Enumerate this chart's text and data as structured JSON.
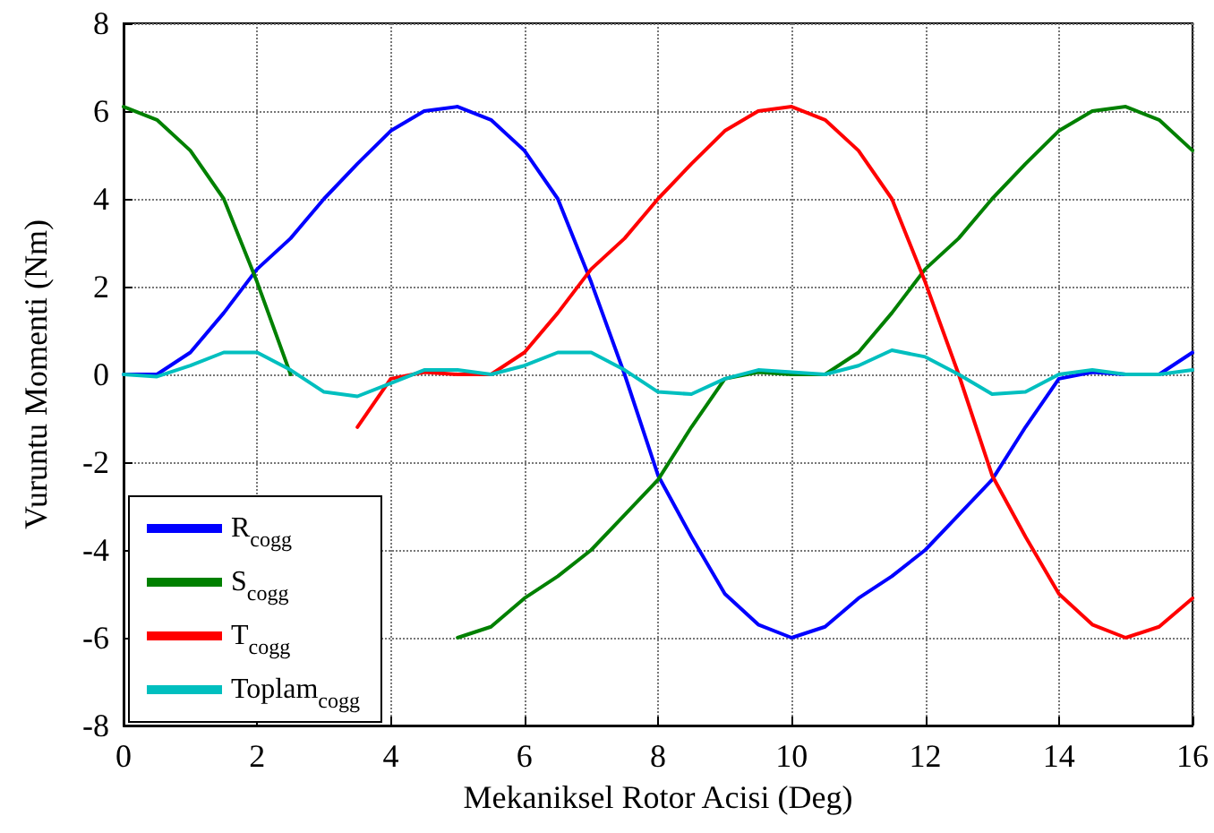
{
  "chart_data": {
    "type": "line",
    "xlabel": "Mekaniksel Rotor Acisi (Deg)",
    "ylabel": "Vuruntu Momenti (Nm)",
    "x": [
      0,
      0.5,
      1,
      1.5,
      2,
      2.5,
      3,
      3.5,
      4,
      4.5,
      5,
      5.5,
      6,
      6.5,
      7,
      7.5,
      8,
      8.5,
      9,
      9.5,
      10,
      10.5,
      11,
      11.5,
      12,
      12.5,
      13,
      13.5,
      14,
      14.5,
      15,
      15.5,
      16
    ],
    "series": [
      {
        "name": "R$_{cogg}$",
        "color": "#0000ff",
        "values": [
          0,
          0,
          0.5,
          1.4,
          2.4,
          3.1,
          4.0,
          4.8,
          5.55,
          6.0,
          6.1,
          5.8,
          5.1,
          4.0,
          2.1,
          0,
          -2.3,
          -3.7,
          -5.0,
          -5.7,
          -6.0,
          -5.75,
          -5.1,
          -4.6,
          -4.0,
          -3.2,
          -2.4,
          -1.2,
          -0.1,
          0.05,
          0,
          0,
          0.5
        ]
      },
      {
        "name": "S$_{cogg}$",
        "color": "#008000",
        "values": [
          6.1,
          5.8,
          5.1,
          4.0,
          2.1,
          0,
          null,
          null,
          null,
          null,
          -6.0,
          -5.75,
          -5.1,
          -4.6,
          -4.0,
          -3.2,
          -2.4,
          -1.2,
          -0.1,
          0.05,
          0,
          0,
          0.5,
          1.4,
          2.4,
          3.1,
          4.0,
          4.8,
          5.55,
          6.0,
          6.1,
          5.8,
          5.1
        ]
      },
      {
        "name": "T$_{cogg}$",
        "color": "#ff0000",
        "values": [
          null,
          null,
          null,
          null,
          null,
          null,
          null,
          -1.2,
          -0.1,
          0.05,
          0,
          0,
          0.5,
          1.4,
          2.4,
          3.1,
          4.0,
          4.8,
          5.55,
          6.0,
          6.1,
          5.8,
          5.1,
          4.0,
          2.1,
          0,
          -2.3,
          -3.7,
          -5.0,
          -5.7,
          -6.0,
          -5.75,
          -5.1
        ]
      },
      {
        "name": "Toplam$_{cogg}$",
        "color": "#00bfbf",
        "values": [
          0,
          -0.05,
          0.2,
          0.5,
          0.5,
          0.1,
          -0.4,
          -0.5,
          -0.2,
          0.1,
          0.1,
          0,
          0.2,
          0.5,
          0.5,
          0.1,
          -0.4,
          -0.45,
          -0.1,
          0.1,
          0.05,
          0,
          0.2,
          0.55,
          0.4,
          0,
          -0.45,
          -0.4,
          0,
          0.1,
          0,
          0,
          0.1
        ]
      }
    ],
    "xlim": [
      0,
      16
    ],
    "xticks": [
      0,
      2,
      4,
      6,
      8,
      10,
      12,
      14,
      16
    ],
    "ylim": [
      -8,
      8
    ],
    "yticks": [
      -8,
      -6,
      -4,
      -2,
      0,
      2,
      4,
      6,
      8
    ],
    "grid": true,
    "legend": "bottom left",
    "marker": "none",
    "line_style": "solid"
  }
}
